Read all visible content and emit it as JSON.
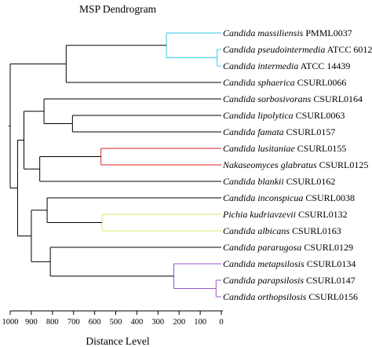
{
  "figure": {
    "title": "MSP Dendrogram",
    "xlabel": "Distance Level"
  },
  "axis": {
    "ticks": [
      "1000",
      "900",
      "800",
      "700",
      "600",
      "500",
      "400",
      "300",
      "200",
      "100",
      "0"
    ],
    "range": [
      1000,
      0
    ],
    "reversed": true
  },
  "leaves": [
    {
      "genus": "Candida",
      "species": "massiliensis",
      "strain": "PMML0037"
    },
    {
      "genus": "Candida",
      "species": "pseudointermedia",
      "strain": "ATCC 60126"
    },
    {
      "genus": "Candida",
      "species": "intermedia",
      "strain": "ATCC 14439"
    },
    {
      "genus": "Candida",
      "species": "sphaerica",
      "strain": "CSURL0066"
    },
    {
      "genus": "Candida",
      "species": "sorbosivorans",
      "strain": "CSURL0164"
    },
    {
      "genus": "Candida",
      "species": "lipolytica",
      "strain": "CSURL0063"
    },
    {
      "genus": "Candida",
      "species": "famata",
      "strain": "CSURL0157"
    },
    {
      "genus": "Candida",
      "species": "lusitaniae",
      "strain": "CSURL0155"
    },
    {
      "genus": "Nakaseomyces",
      "species": "glabratus",
      "strain": "CSURL0125"
    },
    {
      "genus": "Candida",
      "species": "blankii",
      "strain": "CSURL0162"
    },
    {
      "genus": "Candida",
      "species": "inconspicua",
      "strain": "CSURL0038"
    },
    {
      "genus": "Pichia",
      "species": "kudriavzevii",
      "strain": "CSURL0132"
    },
    {
      "genus": "Candida",
      "species": "albicans",
      "strain": "CSURL0163"
    },
    {
      "genus": "Candida",
      "species": "pararugosa",
      "strain": "CSURL0129"
    },
    {
      "genus": "Candida",
      "species": "metapsilosis",
      "strain": "CSURL0134"
    },
    {
      "genus": "Candida",
      "species": "parapsilosis",
      "strain": "CSURL0147"
    },
    {
      "genus": "Candida",
      "species": "orthopsilosis",
      "strain": "CSURL0156"
    }
  ],
  "colors": {
    "default": "#000000",
    "cyan": "#33ccee",
    "red": "#e02020",
    "yellow_green": "#ccee66",
    "purple": "#9955cc"
  },
  "clusters": [
    {
      "id": "n1",
      "children": [
        "L1",
        "L2"
      ],
      "distance": 20,
      "color": "cyan"
    },
    {
      "id": "n2",
      "children": [
        "L0",
        "n1"
      ],
      "distance": 260,
      "color": "cyan"
    },
    {
      "id": "n3",
      "children": [
        "n2",
        "L3"
      ],
      "distance": 735,
      "color": "default"
    },
    {
      "id": "n4",
      "children": [
        "L5",
        "L6"
      ],
      "distance": 705,
      "color": "default"
    },
    {
      "id": "n5",
      "children": [
        "L4",
        "n4"
      ],
      "distance": 840,
      "color": "default"
    },
    {
      "id": "n6",
      "children": [
        "L7",
        "L8"
      ],
      "distance": 570,
      "color": "red"
    },
    {
      "id": "n7",
      "children": [
        "n6",
        "L9"
      ],
      "distance": 860,
      "color": "default"
    },
    {
      "id": "n8",
      "children": [
        "n5",
        "n7"
      ],
      "distance": 935,
      "color": "default"
    },
    {
      "id": "n9",
      "children": [
        "L11",
        "L12"
      ],
      "distance": 565,
      "color": "yellow_green"
    },
    {
      "id": "n10",
      "children": [
        "L10",
        "n9"
      ],
      "distance": 825,
      "color": "default"
    },
    {
      "id": "n11",
      "children": [
        "L15",
        "L16"
      ],
      "distance": 25,
      "color": "purple"
    },
    {
      "id": "n12",
      "children": [
        "L14",
        "n11"
      ],
      "distance": 225,
      "color": "purple"
    },
    {
      "id": "n13",
      "children": [
        "L13",
        "n12"
      ],
      "distance": 810,
      "color": "default"
    },
    {
      "id": "n14",
      "children": [
        "n10",
        "n13"
      ],
      "distance": 900,
      "color": "default"
    },
    {
      "id": "n15",
      "children": [
        "n8",
        "n14"
      ],
      "distance": 965,
      "color": "default"
    },
    {
      "id": "n16",
      "children": [
        "n3",
        "n15"
      ],
      "distance": 1000,
      "color": "default"
    }
  ]
}
